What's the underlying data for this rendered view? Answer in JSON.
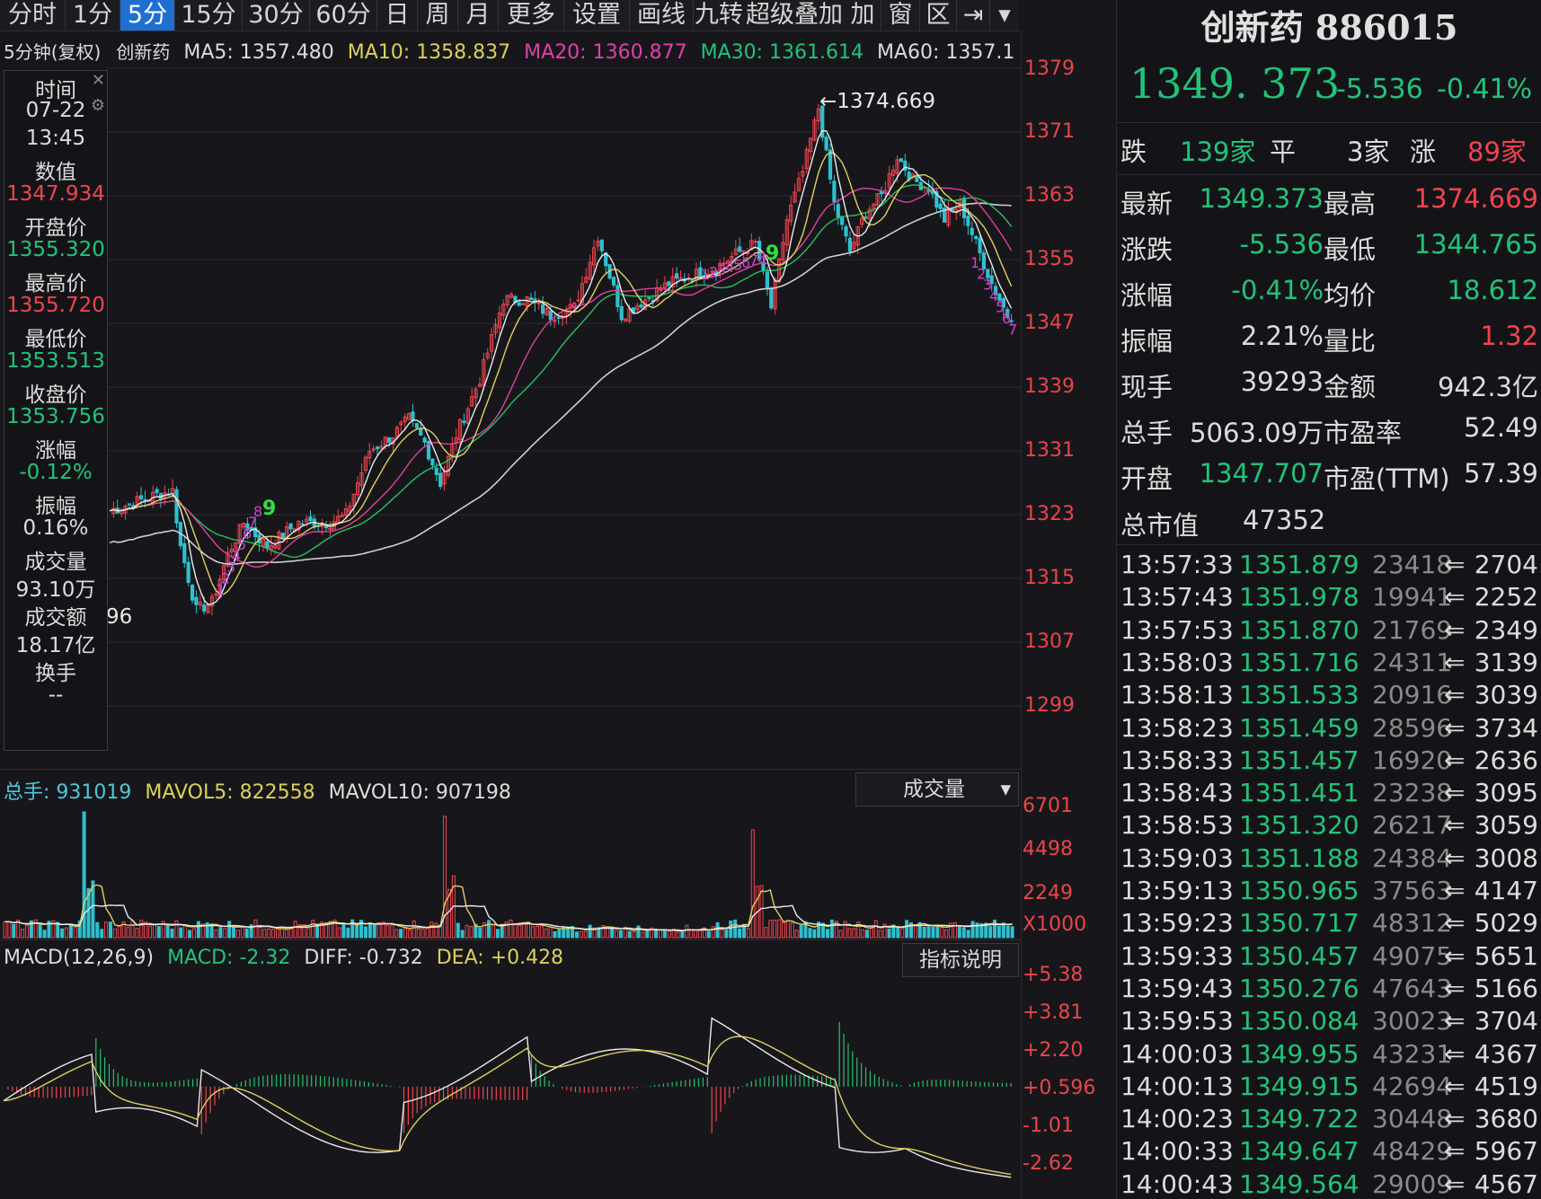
{
  "toolbar": {
    "tabs": [
      "分时",
      "1分",
      "5分",
      "15分",
      "30分",
      "60分",
      "日",
      "周",
      "月",
      "更多",
      "设置",
      "画线",
      "九转",
      "超级叠加",
      "加",
      "窗",
      "区"
    ],
    "active": "5分"
  },
  "legend": {
    "period": "5分钟(复权)",
    "name": "创新药",
    "ma5": "MA5: 1357.480",
    "ma10": "MA10: 1358.837",
    "ma20": "MA20: 1360.877",
    "ma30": "MA30: 1361.614",
    "ma60": "MA60: 1357.1"
  },
  "colors": {
    "up": "#f04450",
    "down": "#2fc0cf",
    "ma5": "#e8e8e8",
    "ma10": "#e0d060",
    "ma20": "#e040a0",
    "ma30": "#28c060",
    "ma60": "#d0d0d0"
  },
  "price_axis": [
    "1379",
    "1371",
    "1363",
    "1355",
    "1347",
    "1339",
    "1331",
    "1323",
    "1315",
    "1307",
    "1299"
  ],
  "high_label": "1374.669",
  "low_partial": "96",
  "tooltip": {
    "time_label": "时间",
    "date": "07-22",
    "time": "13:45",
    "value_label": "数值",
    "value": "1347.934",
    "open_label": "开盘价",
    "open": "1355.320",
    "high_label": "最高价",
    "high": "1355.720",
    "low_label": "最低价",
    "low": "1353.513",
    "close_label": "收盘价",
    "close": "1353.756",
    "chg_label": "涨幅",
    "chg": "-0.12%",
    "amp_label": "振幅",
    "amp": "0.16%",
    "vol_label": "成交量",
    "vol": "93.10万",
    "amt_label": "成交额",
    "amt": "18.17亿",
    "turn_label": "换手",
    "turn": "--"
  },
  "td_marks": {
    "first_up": [
      "1",
      "2",
      "3",
      "4",
      "5",
      "6",
      "7",
      "8"
    ],
    "first_nine": "9",
    "second_up": [
      "1",
      "2",
      "3",
      "4",
      "5",
      "6",
      "7",
      "8"
    ],
    "second_nine": "9",
    "down_seq": [
      "1",
      "2",
      "3",
      "4",
      "5",
      "6",
      "7"
    ]
  },
  "volume": {
    "total_label": "总手: 931019",
    "mavol5": "MAVOL5: 822558",
    "mavol10": "MAVOL10: 907198",
    "selector": "成交量",
    "axis": [
      "6701",
      "4498",
      "2249",
      "X1000"
    ]
  },
  "macd": {
    "title": "MACD(12,26,9)",
    "macd": "MACD: -2.32",
    "diff": "DIFF: -0.732",
    "dea": "DEA: +0.428",
    "button": "指标说明",
    "axis": [
      "+5.38",
      "+3.81",
      "+2.20",
      "+0.596",
      "-1.01",
      "-2.62"
    ]
  },
  "quote": {
    "title": "创新药 886015",
    "price": "1349. 373",
    "change": "-5.536",
    "pct": "-0.41%",
    "down_label": "跌",
    "down_count": "139家",
    "flat_label": "平",
    "flat_count": "3家",
    "up_label": "涨",
    "up_count": "89家",
    "rows": [
      {
        "l1": "最新",
        "v1": "1349.373",
        "c1": "g",
        "l2": "最高",
        "v2": "1374.669",
        "c2": "r"
      },
      {
        "l1": "涨跌",
        "v1": "-5.536",
        "c1": "g",
        "l2": "最低",
        "v2": "1344.765",
        "c2": "g"
      },
      {
        "l1": "涨幅",
        "v1": "-0.41%",
        "c1": "g",
        "l2": "均价",
        "v2": "18.612",
        "c2": "g"
      },
      {
        "l1": "振幅",
        "v1": "2.21%",
        "c1": "w",
        "l2": "量比",
        "v2": "1.32",
        "c2": "r"
      },
      {
        "l1": "现手",
        "v1": "39293",
        "c1": "w",
        "l2": "金额",
        "v2": "942.3亿",
        "c2": "w"
      },
      {
        "l1": "总手",
        "v1": "5063.09万",
        "c1": "w",
        "l2": "市盈率",
        "v2": "52.49",
        "c2": "w"
      },
      {
        "l1": "开盘",
        "v1": "1347.707",
        "c1": "g",
        "l2": "市盈(TTM)",
        "v2": "57.39",
        "c2": "w"
      }
    ],
    "mktcap_label": "总市值",
    "mktcap": "47352",
    "ticks": [
      {
        "t": "13:57:33",
        "p": "1351.879",
        "v": "23418",
        "n": "2704"
      },
      {
        "t": "13:57:43",
        "p": "1351.978",
        "v": "19941",
        "n": "2252"
      },
      {
        "t": "13:57:53",
        "p": "1351.870",
        "v": "21769",
        "n": "2349"
      },
      {
        "t": "13:58:03",
        "p": "1351.716",
        "v": "24311",
        "n": "3139"
      },
      {
        "t": "13:58:13",
        "p": "1351.533",
        "v": "20916",
        "n": "3039"
      },
      {
        "t": "13:58:23",
        "p": "1351.459",
        "v": "28596",
        "n": "3734"
      },
      {
        "t": "13:58:33",
        "p": "1351.457",
        "v": "16920",
        "n": "2636"
      },
      {
        "t": "13:58:43",
        "p": "1351.451",
        "v": "23238",
        "n": "3095"
      },
      {
        "t": "13:58:53",
        "p": "1351.320",
        "v": "26217",
        "n": "3059"
      },
      {
        "t": "13:59:03",
        "p": "1351.188",
        "v": "24384",
        "n": "3008"
      },
      {
        "t": "13:59:13",
        "p": "1350.965",
        "v": "37563",
        "n": "4147"
      },
      {
        "t": "13:59:23",
        "p": "1350.717",
        "v": "48312",
        "n": "5029"
      },
      {
        "t": "13:59:33",
        "p": "1350.457",
        "v": "49075",
        "n": "5651"
      },
      {
        "t": "13:59:43",
        "p": "1350.276",
        "v": "47643",
        "n": "5166"
      },
      {
        "t": "13:59:53",
        "p": "1350.084",
        "v": "30023",
        "n": "3704"
      },
      {
        "t": "14:00:03",
        "p": "1349.955",
        "v": "43231",
        "n": "4367"
      },
      {
        "t": "14:00:13",
        "p": "1349.915",
        "v": "42694",
        "n": "4519"
      },
      {
        "t": "14:00:23",
        "p": "1349.722",
        "v": "30448",
        "n": "3680"
      },
      {
        "t": "14:00:33",
        "p": "1349.647",
        "v": "48429",
        "n": "5967"
      },
      {
        "t": "14:00:43",
        "p": "1349.564",
        "v": "29009",
        "n": "4567"
      }
    ]
  }
}
